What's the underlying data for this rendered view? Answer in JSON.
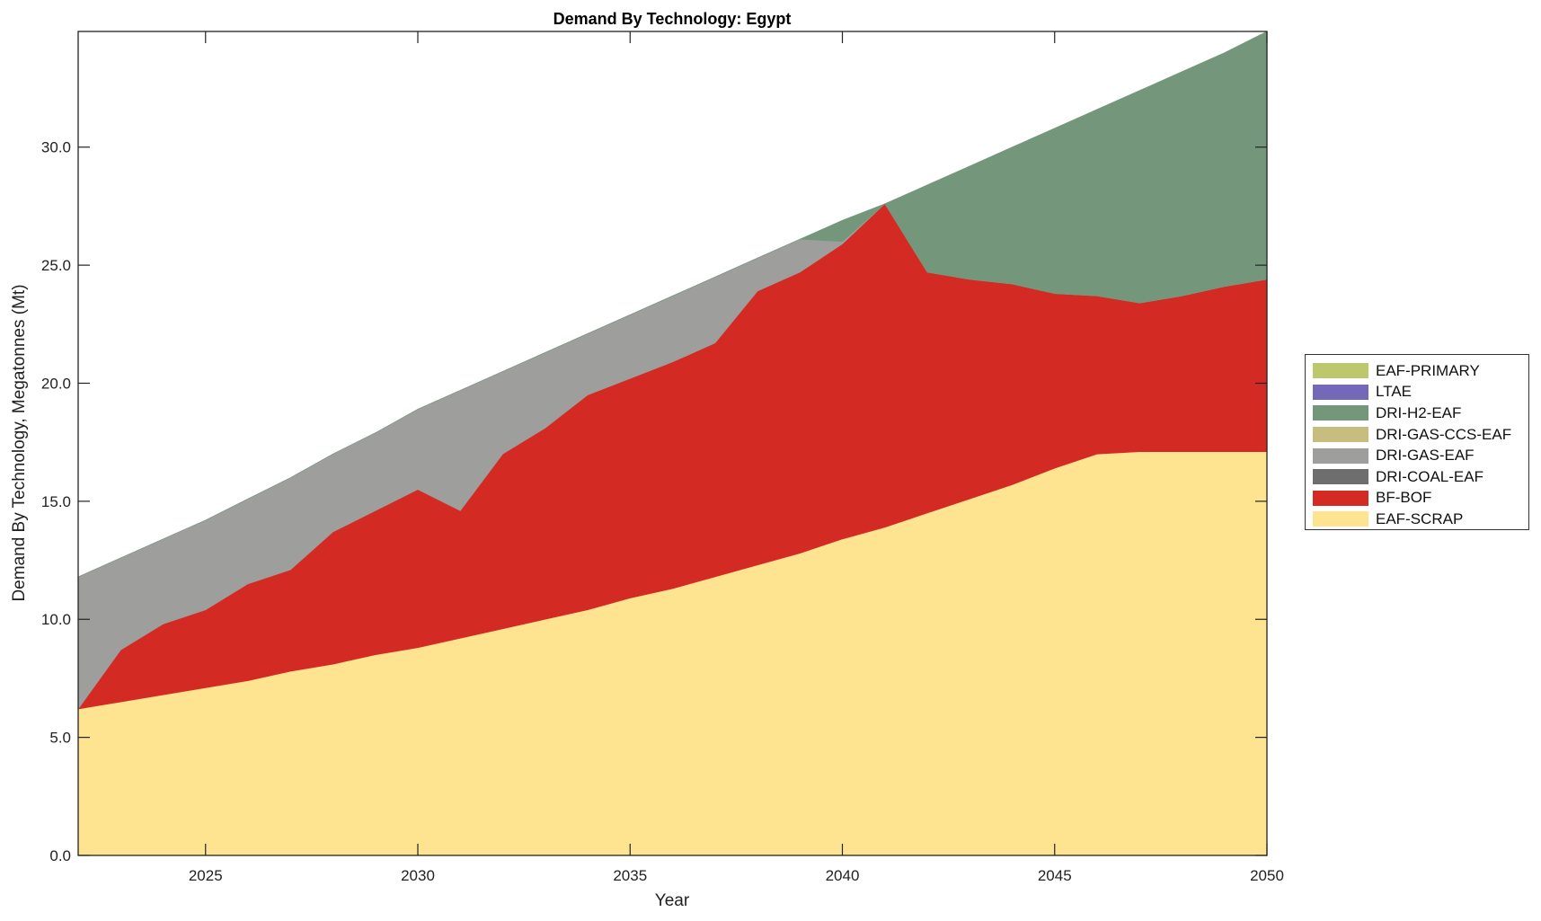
{
  "chart_data": {
    "type": "area",
    "stacked": true,
    "title": "Demand By Technology: Egypt",
    "xlabel": "Year",
    "ylabel": "Demand By Technology, Megatonnes (Mt)",
    "xlim": [
      2022,
      2050
    ],
    "ylim": [
      0,
      34.9
    ],
    "xticks": [
      2025,
      2030,
      2035,
      2040,
      2045,
      2050
    ],
    "xtick_labels": [
      "2025",
      "2030",
      "2035",
      "2040",
      "2045",
      "2050"
    ],
    "yticks": [
      0,
      5,
      10,
      15,
      20,
      25,
      30
    ],
    "ytick_labels": [
      "0.0",
      "5.0",
      "10.0",
      "15.0",
      "20.0",
      "25.0",
      "30.0"
    ],
    "grid": false,
    "legend_position": "right",
    "x": [
      2022,
      2023,
      2024,
      2025,
      2026,
      2027,
      2028,
      2029,
      2030,
      2031,
      2032,
      2033,
      2034,
      2035,
      2036,
      2037,
      2038,
      2039,
      2040,
      2041,
      2042,
      2043,
      2044,
      2045,
      2046,
      2047,
      2048,
      2049,
      2050
    ],
    "series": [
      {
        "name": "EAF-SCRAP",
        "color": "#fee391",
        "values": [
          6.2,
          6.5,
          6.8,
          7.1,
          7.4,
          7.8,
          8.1,
          8.5,
          8.8,
          9.2,
          9.6,
          10.0,
          10.4,
          10.9,
          11.3,
          11.8,
          12.3,
          12.8,
          13.4,
          13.9,
          14.5,
          15.1,
          15.7,
          16.4,
          17.0,
          17.1,
          17.1,
          17.1,
          17.1
        ]
      },
      {
        "name": "BF-BOF",
        "color": "#d32b24",
        "values": [
          0.0,
          2.2,
          3.0,
          3.3,
          4.1,
          4.3,
          5.6,
          6.1,
          6.7,
          5.4,
          7.4,
          8.1,
          9.1,
          9.3,
          9.6,
          9.9,
          11.6,
          11.9,
          12.5,
          13.7,
          10.2,
          9.3,
          8.5,
          7.4,
          6.7,
          6.3,
          6.6,
          7.0,
          7.3
        ]
      },
      {
        "name": "DRI-COAL-EAF",
        "color": "#6e6e6e",
        "values": [
          0,
          0,
          0,
          0,
          0,
          0,
          0,
          0,
          0,
          0,
          0,
          0,
          0,
          0,
          0,
          0,
          0,
          0,
          0,
          0,
          0,
          0,
          0,
          0,
          0,
          0,
          0,
          0,
          0
        ]
      },
      {
        "name": "DRI-GAS-EAF",
        "color": "#9e9e9c",
        "values": [
          5.6,
          3.9,
          3.6,
          3.8,
          3.6,
          3.9,
          3.3,
          3.3,
          3.4,
          5.1,
          3.5,
          3.2,
          2.6,
          2.7,
          2.8,
          2.8,
          1.4,
          1.4,
          0.1,
          0,
          0,
          0,
          0,
          0,
          0,
          0,
          0,
          0,
          0
        ]
      },
      {
        "name": "DRI-GAS-CCS-EAF",
        "color": "#c6bd7e",
        "values": [
          0,
          0,
          0,
          0,
          0,
          0,
          0,
          0,
          0,
          0,
          0,
          0,
          0,
          0,
          0,
          0,
          0,
          0,
          0,
          0,
          0,
          0,
          0,
          0,
          0,
          0,
          0,
          0,
          0
        ]
      },
      {
        "name": "DRI-H2-EAF",
        "color": "#74977c",
        "values": [
          0,
          0,
          0,
          0,
          0,
          0,
          0,
          0,
          0,
          0,
          0,
          0,
          0,
          0,
          0,
          0,
          0,
          0,
          0.9,
          0,
          3.7,
          4.8,
          5.8,
          7.0,
          7.9,
          9.0,
          9.5,
          9.9,
          10.5
        ]
      },
      {
        "name": "LTAE",
        "color": "#7468b8",
        "values": [
          0,
          0,
          0,
          0,
          0,
          0,
          0,
          0,
          0,
          0,
          0,
          0,
          0,
          0,
          0,
          0,
          0,
          0,
          0,
          0,
          0,
          0,
          0,
          0,
          0,
          0,
          0,
          0,
          0
        ]
      },
      {
        "name": "EAF-PRIMARY",
        "color": "#bdc76b",
        "values": [
          0,
          0,
          0,
          0,
          0,
          0,
          0,
          0,
          0,
          0,
          0,
          0,
          0,
          0,
          0,
          0,
          0,
          0,
          0,
          0,
          0,
          0,
          0,
          0,
          0,
          0,
          0,
          0,
          0
        ]
      }
    ],
    "legend_order": [
      "EAF-PRIMARY",
      "LTAE",
      "DRI-H2-EAF",
      "DRI-GAS-CCS-EAF",
      "DRI-GAS-EAF",
      "DRI-COAL-EAF",
      "BF-BOF",
      "EAF-SCRAP"
    ]
  }
}
